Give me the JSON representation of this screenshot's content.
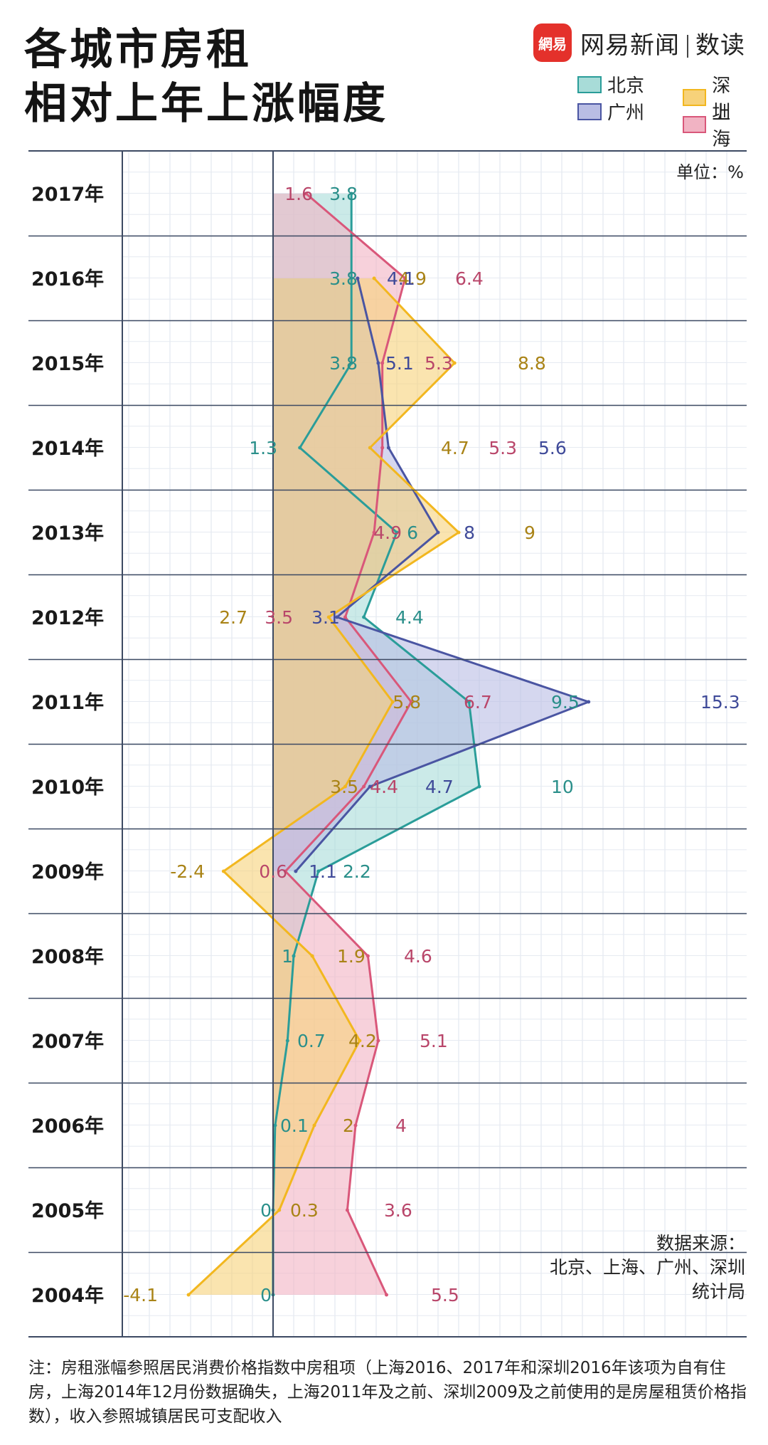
{
  "header": {
    "title_line1": "各城市房租",
    "title_line2": "相对上年上涨幅度",
    "brand_logo": "網易",
    "brand_name": "网易新闻",
    "brand_sub": "数读"
  },
  "unit_label": "单位：%",
  "source": {
    "line1": "数据来源：",
    "line2": "北京、上海、广州、深圳",
    "line3": "统计局"
  },
  "note": "注：房租涨幅参照居民消费价格指数中房租项（上海2016、2017年和深圳2016年该项为自有住房，上海2014年12月份数据确失，上海2011年及之前、深圳2009及之前使用的是房屋租赁价格指数），收入参照城镇居民可支配收入",
  "colors": {
    "beijing_line": "#2a9d99",
    "beijing_fill": "#a8dcd8",
    "shenzhen_line": "#f2b71f",
    "shenzhen_fill": "#f7d27a",
    "guangzhou_line": "#4a55a2",
    "guangzhou_fill": "#b9bde4",
    "shanghai_line": "#d9577a",
    "shanghai_fill": "#f1b3c3"
  },
  "chart_data": {
    "type": "area",
    "orientation": "horizontal",
    "categories": [
      "2017年",
      "2016年",
      "2015年",
      "2014年",
      "2013年",
      "2012年",
      "2011年",
      "2010年",
      "2009年",
      "2008年",
      "2007年",
      "2006年",
      "2005年",
      "2004年"
    ],
    "series": [
      {
        "name": "北京",
        "values": [
          3.8,
          3.8,
          3.8,
          1.3,
          6,
          4.4,
          9.5,
          10,
          2.2,
          1,
          0.7,
          0.1,
          0,
          0
        ]
      },
      {
        "name": "深圳",
        "values": [
          null,
          4.9,
          8.8,
          4.7,
          9,
          2.7,
          5.8,
          3.5,
          -2.4,
          1.9,
          4.2,
          2,
          0.3,
          -4.1
        ]
      },
      {
        "name": "广州",
        "values": [
          null,
          4.1,
          5.1,
          5.6,
          8,
          3.1,
          15.3,
          4.7,
          1.1,
          null,
          null,
          null,
          null,
          null
        ]
      },
      {
        "name": "上海",
        "values": [
          1.6,
          6.4,
          5.3,
          5.3,
          4.9,
          3.5,
          6.7,
          4.4,
          0.6,
          4.6,
          5.1,
          4,
          3.6,
          5.5
        ]
      }
    ],
    "xlim": [
      -5.5,
      17.5
    ],
    "grid": true,
    "legend": "top-right"
  }
}
